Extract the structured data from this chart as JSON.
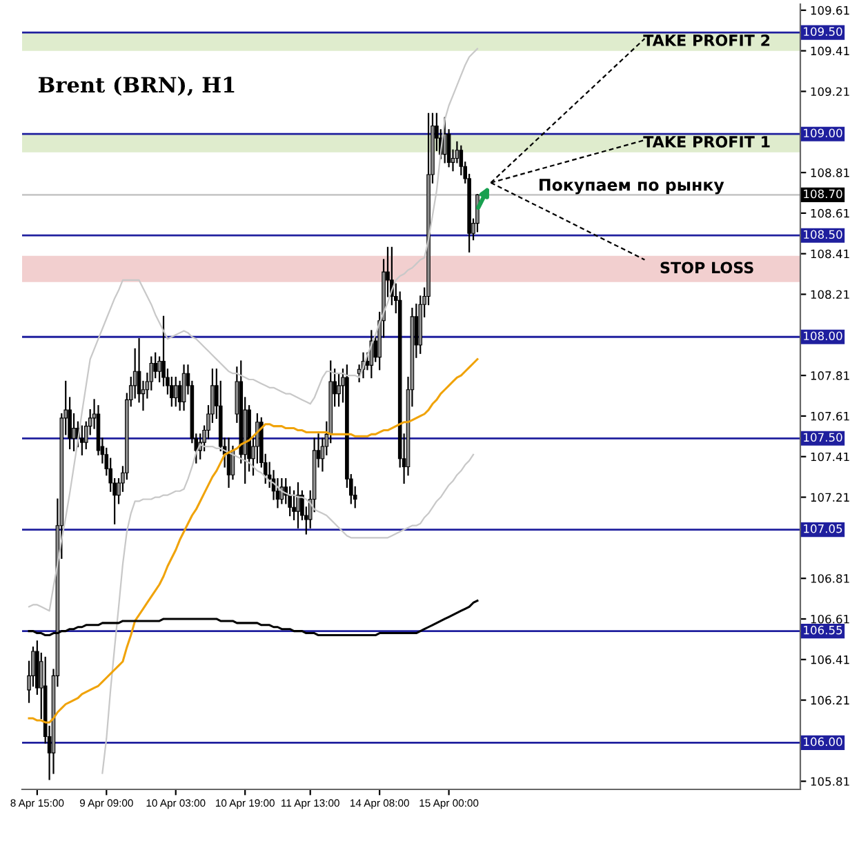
{
  "chart_data": {
    "type": "candlestick",
    "title": "Brent (BRN), H1",
    "categories": [
      null,
      null,
      "8 Apr 15:00",
      null,
      null,
      null,
      null,
      null,
      null,
      null,
      null,
      null,
      null,
      null,
      null,
      null,
      null,
      null,
      null,
      "9 Apr 09:00",
      null,
      null,
      null,
      null,
      null,
      null,
      null,
      null,
      null,
      null,
      null,
      null,
      null,
      null,
      null,
      null,
      "10 Apr 03:00",
      null,
      null,
      null,
      null,
      null,
      null,
      null,
      null,
      null,
      null,
      null,
      null,
      null,
      null,
      null,
      null,
      "10 Apr 19:00",
      null,
      null,
      null,
      null,
      null,
      null,
      null,
      null,
      null,
      null,
      null,
      null,
      null,
      null,
      null,
      "11 Apr 13:00",
      null,
      null,
      null,
      null,
      null,
      null,
      null,
      null,
      null,
      null,
      null,
      null,
      null,
      null,
      null,
      null,
      "14 Apr 08:00",
      null,
      null,
      null,
      null,
      null,
      null,
      null,
      null,
      null,
      null,
      null,
      null,
      null,
      null,
      null,
      null,
      "15 Apr 00:00",
      null,
      null,
      null,
      null,
      null,
      null,
      null
    ],
    "ohlc": [
      [
        106.26,
        106.4,
        106.2,
        106.33
      ],
      [
        106.33,
        106.47,
        106.28,
        106.45
      ],
      [
        106.45,
        106.5,
        106.24,
        106.27
      ],
      [
        106.27,
        106.44,
        106.12,
        106.4
      ],
      [
        106.28,
        106.42,
        106.0,
        106.03
      ],
      [
        106.03,
        106.08,
        105.82,
        105.95
      ],
      [
        105.95,
        106.36,
        105.85,
        106.33
      ],
      [
        106.33,
        107.2,
        106.28,
        107.07
      ],
      [
        107.07,
        107.62,
        106.91,
        107.6
      ],
      [
        107.6,
        107.78,
        107.52,
        107.64
      ],
      [
        107.64,
        107.7,
        107.45,
        107.5
      ],
      [
        107.5,
        107.62,
        107.44,
        107.55
      ],
      [
        107.55,
        107.58,
        107.46,
        107.5
      ],
      [
        107.5,
        107.56,
        107.42,
        107.48
      ],
      [
        107.48,
        107.58,
        107.45,
        107.56
      ],
      [
        107.56,
        107.64,
        107.52,
        107.6
      ],
      [
        107.6,
        107.69,
        107.55,
        107.62
      ],
      [
        107.62,
        107.66,
        107.42,
        107.44
      ],
      [
        107.46,
        107.5,
        107.38,
        107.42
      ],
      [
        107.42,
        107.45,
        107.32,
        107.35
      ],
      [
        107.35,
        107.4,
        107.24,
        107.28
      ],
      [
        107.28,
        107.3,
        107.08,
        107.22
      ],
      [
        107.22,
        107.3,
        107.18,
        107.28
      ],
      [
        107.28,
        107.36,
        107.24,
        107.33
      ],
      [
        107.33,
        107.72,
        107.3,
        107.69
      ],
      [
        107.69,
        107.8,
        107.66,
        107.76
      ],
      [
        107.76,
        107.94,
        107.7,
        107.83
      ],
      [
        107.83,
        107.99,
        107.68,
        107.72
      ],
      [
        107.72,
        107.78,
        107.64,
        107.74
      ],
      [
        107.74,
        107.82,
        107.7,
        107.78
      ],
      [
        107.78,
        107.9,
        107.74,
        107.87
      ],
      [
        107.87,
        107.92,
        107.8,
        107.83
      ],
      [
        107.83,
        107.9,
        107.78,
        107.88
      ],
      [
        107.88,
        108.1,
        107.76,
        107.8
      ],
      [
        107.8,
        107.84,
        107.72,
        107.76
      ],
      [
        107.76,
        107.8,
        107.66,
        107.7
      ],
      [
        107.7,
        107.8,
        107.66,
        107.76
      ],
      [
        107.76,
        107.78,
        107.64,
        107.68
      ],
      [
        107.68,
        107.86,
        107.64,
        107.82
      ],
      [
        107.82,
        107.86,
        107.72,
        107.76
      ],
      [
        107.76,
        107.78,
        107.48,
        107.5
      ],
      [
        107.5,
        107.52,
        107.38,
        107.44
      ],
      [
        107.44,
        107.52,
        107.4,
        107.48
      ],
      [
        107.48,
        107.56,
        107.44,
        107.54
      ],
      [
        107.54,
        107.66,
        107.5,
        107.62
      ],
      [
        107.62,
        107.84,
        107.58,
        107.76
      ],
      [
        107.76,
        107.84,
        107.6,
        107.66
      ],
      [
        107.66,
        107.78,
        107.44,
        107.46
      ],
      [
        107.46,
        107.5,
        107.36,
        107.42
      ],
      [
        107.42,
        107.5,
        107.26,
        107.32
      ],
      [
        107.32,
        107.46,
        107.3,
        107.44
      ],
      [
        107.62,
        107.85,
        107.58,
        107.78
      ],
      [
        107.78,
        107.88,
        107.38,
        107.42
      ],
      [
        107.42,
        107.7,
        107.28,
        107.64
      ],
      [
        107.64,
        107.66,
        107.34,
        107.4
      ],
      [
        107.4,
        107.5,
        107.32,
        107.46
      ],
      [
        107.46,
        107.62,
        107.38,
        107.58
      ],
      [
        107.58,
        107.6,
        107.36,
        107.38
      ],
      [
        107.38,
        107.42,
        107.28,
        107.32
      ],
      [
        107.32,
        107.38,
        107.26,
        107.3
      ],
      [
        107.3,
        107.34,
        107.2,
        107.24
      ],
      [
        107.24,
        107.3,
        107.16,
        107.2
      ],
      [
        107.2,
        107.3,
        107.18,
        107.26
      ],
      [
        107.26,
        107.3,
        107.18,
        107.22
      ],
      [
        107.22,
        107.26,
        107.12,
        107.16
      ],
      [
        107.16,
        107.24,
        107.1,
        107.14
      ],
      [
        107.14,
        107.28,
        107.06,
        107.22
      ],
      [
        107.22,
        107.24,
        107.1,
        107.12
      ],
      [
        107.12,
        107.16,
        107.03,
        107.1
      ],
      [
        107.1,
        107.24,
        107.06,
        107.2
      ],
      [
        107.2,
        107.5,
        107.14,
        107.44
      ],
      [
        107.44,
        107.52,
        107.36,
        107.4
      ],
      [
        107.4,
        107.5,
        107.34,
        107.46
      ],
      [
        107.46,
        107.58,
        107.42,
        107.52
      ],
      [
        107.52,
        107.88,
        107.48,
        107.78
      ],
      [
        107.78,
        107.84,
        107.66,
        107.72
      ],
      [
        107.72,
        107.82,
        107.66,
        107.76
      ],
      [
        107.76,
        107.84,
        107.68,
        107.8
      ],
      [
        107.8,
        107.86,
        107.26,
        107.3
      ],
      [
        107.3,
        107.32,
        107.18,
        107.22
      ],
      [
        107.22,
        107.26,
        107.16,
        107.2
      ],
      [
        107.82,
        107.86,
        107.78,
        107.84
      ],
      [
        107.84,
        107.92,
        107.8,
        107.88
      ],
      [
        107.88,
        107.92,
        107.84,
        107.86
      ],
      [
        107.86,
        108.03,
        107.8,
        107.98
      ],
      [
        107.98,
        108.0,
        107.88,
        107.9
      ],
      [
        107.9,
        108.12,
        107.84,
        108.08
      ],
      [
        108.08,
        108.38,
        108.0,
        108.32
      ],
      [
        108.32,
        108.44,
        108.2,
        108.28
      ],
      [
        108.28,
        108.44,
        108.16,
        108.2
      ],
      [
        108.2,
        108.26,
        108.12,
        108.18
      ],
      [
        108.18,
        108.22,
        107.36,
        107.4
      ],
      [
        107.4,
        107.52,
        107.28,
        107.36
      ],
      [
        107.36,
        107.8,
        107.32,
        107.74
      ],
      [
        107.74,
        108.14,
        107.66,
        108.1
      ],
      [
        108.1,
        108.16,
        107.9,
        107.96
      ],
      [
        107.96,
        108.2,
        107.92,
        108.16
      ],
      [
        108.16,
        108.24,
        108.1,
        108.2
      ],
      [
        108.2,
        109.1,
        108.16,
        108.8
      ],
      [
        108.8,
        109.1,
        108.76,
        109.04
      ],
      [
        109.04,
        109.1,
        108.92,
        108.98
      ],
      [
        108.98,
        109.02,
        108.88,
        108.9
      ],
      [
        108.9,
        109.08,
        108.86,
        109.0
      ],
      [
        109.0,
        109.02,
        108.84,
        108.86
      ],
      [
        108.86,
        108.92,
        108.82,
        108.88
      ],
      [
        108.88,
        108.96,
        108.86,
        108.92
      ],
      [
        108.92,
        108.94,
        108.8,
        108.84
      ],
      [
        108.84,
        108.86,
        108.76,
        108.78
      ],
      [
        108.78,
        108.8,
        108.42,
        108.51
      ],
      [
        108.51,
        108.58,
        108.48,
        108.56
      ],
      [
        108.56,
        108.7,
        108.52,
        108.7
      ]
    ],
    "series": [
      {
        "type": "line",
        "color": "#c8c8c8",
        "values": [
          106.67,
          106.68,
          106.68,
          106.67,
          106.66,
          106.65,
          106.77,
          106.88,
          107.0,
          107.11,
          107.23,
          107.36,
          107.49,
          107.63,
          107.76,
          107.89,
          107.94,
          107.99,
          108.04,
          108.09,
          108.14,
          108.19,
          108.23,
          108.28,
          108.28,
          108.28,
          108.28,
          108.28,
          108.24,
          108.2,
          108.16,
          108.11,
          108.07,
          108.03,
          107.99,
          108.0,
          108.01,
          108.02,
          108.03,
          108.02,
          108.0,
          107.99,
          107.97,
          107.95,
          107.93,
          107.91,
          107.89,
          107.87,
          107.85,
          107.83,
          107.82,
          107.82,
          107.81,
          107.8,
          107.79,
          107.79,
          107.78,
          107.77,
          107.76,
          107.75,
          107.75,
          107.74,
          107.73,
          107.72,
          107.72,
          107.71,
          107.7,
          107.69,
          107.68,
          107.67,
          107.7,
          107.75,
          107.8,
          107.83,
          107.83,
          107.82,
          107.82,
          107.82,
          107.81,
          107.81,
          107.81,
          107.8,
          107.85,
          107.91,
          107.96,
          108.01,
          108.07,
          108.12,
          108.17,
          108.23,
          108.28,
          108.3,
          108.31,
          108.33,
          108.34,
          108.36,
          108.38,
          108.39,
          108.48,
          108.6,
          108.72,
          108.91,
          109.07,
          109.14,
          109.19,
          109.24,
          109.29,
          109.34,
          109.38,
          109.4,
          109.42
        ]
      },
      {
        "type": "line",
        "color": "#c8c8c8",
        "values": [
          null,
          null,
          null,
          null,
          null,
          null,
          null,
          null,
          null,
          null,
          null,
          null,
          null,
          null,
          null,
          null,
          null,
          null,
          105.85,
          106.02,
          106.26,
          106.47,
          106.67,
          106.88,
          107.04,
          107.13,
          107.19,
          107.19,
          107.2,
          107.2,
          107.2,
          107.21,
          107.21,
          107.22,
          107.22,
          107.23,
          107.24,
          107.24,
          107.25,
          107.3,
          107.36,
          107.43,
          107.47,
          107.46,
          107.46,
          107.46,
          107.45,
          107.45,
          107.44,
          107.43,
          107.42,
          107.41,
          107.4,
          107.39,
          107.38,
          107.36,
          107.34,
          107.33,
          107.31,
          107.29,
          107.28,
          107.26,
          107.24,
          107.23,
          107.22,
          107.22,
          107.21,
          107.21,
          107.2,
          107.18,
          107.15,
          107.14,
          107.13,
          107.12,
          107.1,
          107.08,
          107.06,
          107.04,
          107.02,
          107.01,
          107.01,
          107.01,
          107.01,
          107.01,
          107.01,
          107.01,
          107.01,
          107.01,
          107.01,
          107.02,
          107.03,
          107.04,
          107.05,
          107.06,
          107.07,
          107.07,
          107.08,
          107.11,
          107.13,
          107.16,
          107.19,
          107.21,
          107.24,
          107.27,
          107.29,
          107.32,
          107.34,
          107.37,
          107.39,
          107.42,
          null
        ]
      },
      {
        "type": "line",
        "color": "#f0a30a",
        "values": [
          106.12,
          106.12,
          106.11,
          106.11,
          106.1,
          106.1,
          106.12,
          106.15,
          106.17,
          106.19,
          106.2,
          106.21,
          106.22,
          106.24,
          106.25,
          106.26,
          106.27,
          106.28,
          106.3,
          106.32,
          106.34,
          106.36,
          106.38,
          106.4,
          106.47,
          106.53,
          106.6,
          106.63,
          106.66,
          106.69,
          106.72,
          106.75,
          106.78,
          106.82,
          106.87,
          106.91,
          106.95,
          107.0,
          107.04,
          107.08,
          107.12,
          107.15,
          107.19,
          107.23,
          107.27,
          107.31,
          107.34,
          107.38,
          107.42,
          107.43,
          107.44,
          107.45,
          107.47,
          107.48,
          107.49,
          107.51,
          107.53,
          107.55,
          107.57,
          107.57,
          107.56,
          107.56,
          107.56,
          107.55,
          107.55,
          107.55,
          107.54,
          107.54,
          107.53,
          107.53,
          107.53,
          107.53,
          107.53,
          107.53,
          107.52,
          107.52,
          107.52,
          107.52,
          107.52,
          107.52,
          107.51,
          107.51,
          107.51,
          107.51,
          107.52,
          107.52,
          107.53,
          107.54,
          107.54,
          107.55,
          107.56,
          107.57,
          107.58,
          107.58,
          107.59,
          107.6,
          107.61,
          107.62,
          107.64,
          107.67,
          107.69,
          107.72,
          107.74,
          107.76,
          107.78,
          107.8,
          107.81,
          107.83,
          107.85,
          107.87,
          107.89
        ]
      },
      {
        "type": "line",
        "color": "#000000",
        "values": [
          106.55,
          106.55,
          106.54,
          106.54,
          106.53,
          106.53,
          106.54,
          106.54,
          106.55,
          106.55,
          106.56,
          106.56,
          106.57,
          106.57,
          106.58,
          106.58,
          106.58,
          106.58,
          106.59,
          106.59,
          106.59,
          106.59,
          106.59,
          106.6,
          106.6,
          106.6,
          106.6,
          106.6,
          106.6,
          106.6,
          106.6,
          106.6,
          106.6,
          106.61,
          106.61,
          106.61,
          106.61,
          106.61,
          106.61,
          106.61,
          106.61,
          106.61,
          106.61,
          106.61,
          106.61,
          106.61,
          106.61,
          106.6,
          106.6,
          106.6,
          106.6,
          106.59,
          106.59,
          106.59,
          106.59,
          106.59,
          106.59,
          106.58,
          106.58,
          106.58,
          106.57,
          106.57,
          106.56,
          106.56,
          106.56,
          106.55,
          106.55,
          106.55,
          106.54,
          106.54,
          106.54,
          106.53,
          106.53,
          106.53,
          106.53,
          106.53,
          106.53,
          106.53,
          106.53,
          106.53,
          106.53,
          106.53,
          106.53,
          106.53,
          106.53,
          106.53,
          106.54,
          106.54,
          106.54,
          106.54,
          106.54,
          106.54,
          106.54,
          106.54,
          106.54,
          106.54,
          106.55,
          106.56,
          106.57,
          106.58,
          106.59,
          106.6,
          106.61,
          106.62,
          106.63,
          106.64,
          106.65,
          106.66,
          106.67,
          106.69,
          106.7
        ]
      }
    ],
    "ylim": [
      105.77,
      109.64
    ],
    "yticks": [
      109.61,
      109.41,
      109.21,
      108.81,
      108.61,
      108.41,
      108.21,
      107.81,
      107.61,
      107.41,
      107.21,
      106.81,
      106.61,
      106.41,
      106.21,
      105.81
    ],
    "bands": [
      {
        "axis": "y",
        "from": 109.41,
        "to": 109.5,
        "label": "TAKE PROFIT 2",
        "color": "#dfeccd"
      },
      {
        "axis": "y",
        "from": 108.91,
        "to": 109.0,
        "label": "TAKE PROFIT 1",
        "color": "#dfeccd"
      },
      {
        "axis": "y",
        "from": 108.27,
        "to": 108.4,
        "label": "STOP LOSS",
        "color": "#f2cfcf"
      }
    ],
    "ref_lines": [
      {
        "axis": "y",
        "value": 109.5,
        "label": "109.50",
        "color": "#1f1f9e"
      },
      {
        "axis": "y",
        "value": 109.0,
        "label": "109.00",
        "color": "#1f1f9e"
      },
      {
        "axis": "y",
        "value": 108.7,
        "label": "108.70",
        "color": "#c8c8c8"
      },
      {
        "axis": "y",
        "value": 108.5,
        "label": "108.50",
        "color": "#1f1f9e"
      },
      {
        "axis": "y",
        "value": 108.0,
        "label": "108.00",
        "color": "#1f1f9e"
      },
      {
        "axis": "y",
        "value": 107.5,
        "label": "107.50",
        "color": "#1f1f9e"
      },
      {
        "axis": "y",
        "value": 107.05,
        "label": "107.05",
        "color": "#1f1f9e"
      },
      {
        "axis": "y",
        "value": 106.55,
        "label": "106.55",
        "color": "#1f1f9e"
      },
      {
        "axis": "y",
        "value": 106.0,
        "label": "106.00",
        "color": "#1f1f9e"
      }
    ],
    "annotations": [
      "Покупаем по рынку"
    ],
    "grid": false
  }
}
